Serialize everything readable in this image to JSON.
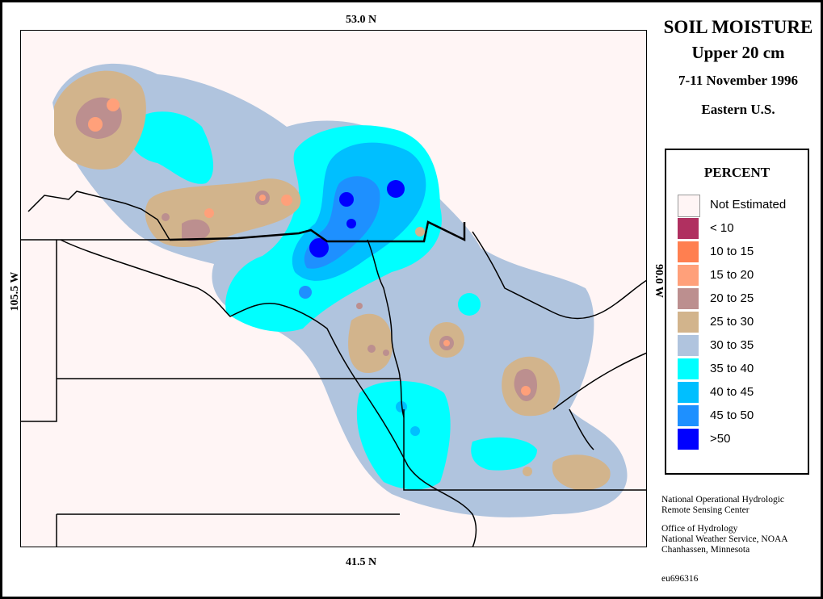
{
  "map": {
    "lat_top": "53.0 N",
    "lat_bottom": "41.5 N",
    "lon_left": "105.5 W",
    "lon_right": "90.0 W"
  },
  "title": {
    "main": "SOIL MOISTURE",
    "depth": "Upper 20 cm",
    "dates": "7-11 November 1996",
    "region": "Eastern U.S."
  },
  "legend": {
    "title": "PERCENT",
    "items": [
      {
        "label": "Not Estimated",
        "color": "#fff5f5"
      },
      {
        "label": "< 10",
        "color": "#b03060"
      },
      {
        "label": "10 to 15",
        "color": "#ff7f50"
      },
      {
        "label": "15 to 20",
        "color": "#ffa07a"
      },
      {
        "label": "20 to 25",
        "color": "#bc8f8f"
      },
      {
        "label": "25 to 30",
        "color": "#d2b48c"
      },
      {
        "label": "30 to 35",
        "color": "#b0c4de"
      },
      {
        "label": "35 to 40",
        "color": "#00ffff"
      },
      {
        "label": "40 to 45",
        "color": "#00bfff"
      },
      {
        "label": "45 to 50",
        "color": "#1e90ff"
      },
      {
        "label": ">50",
        "color": "#0000ff"
      }
    ]
  },
  "credits": {
    "line1": "National Operational Hydrologic",
    "line2": "Remote Sensing Center",
    "line3": "Office of Hydrology",
    "line4": "National Weather Service, NOAA",
    "line5": "Chanhassen, Minnesota"
  },
  "image_id": "eu696316"
}
